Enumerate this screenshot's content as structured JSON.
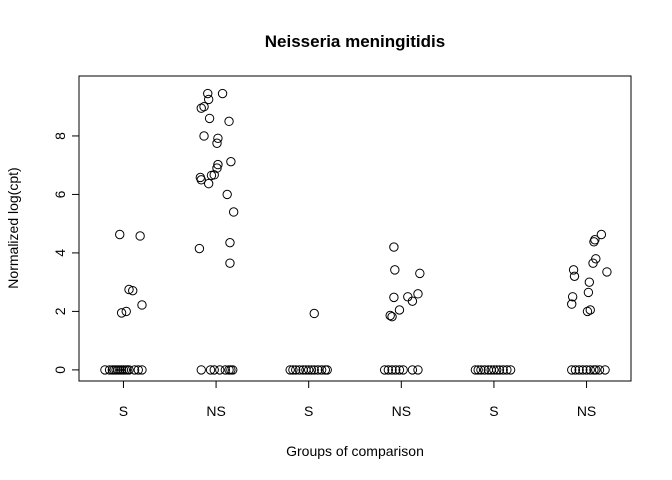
{
  "chart_data": {
    "type": "scatter",
    "title": "Neisseria meningitidis",
    "xlabel": "Groups of comparison",
    "ylabel": "Normalized log(cpt)",
    "categories": [
      "S",
      "NS",
      "S",
      "NS",
      "S",
      "NS"
    ],
    "yticks": [
      "0",
      "2",
      "4",
      "6",
      "8"
    ],
    "ylim": [
      -0.38,
      10.05
    ],
    "grid": false,
    "point_style": "open circle",
    "colors": {
      "point": "#000000",
      "axis": "#000000",
      "background": "#ffffff"
    },
    "groups": [
      {
        "category": "S",
        "points": [
          [
            -0.2,
            0
          ],
          [
            -0.15,
            0
          ],
          [
            -0.12,
            0
          ],
          [
            -0.1,
            0
          ],
          [
            -0.08,
            0
          ],
          [
            -0.06,
            0
          ],
          [
            -0.04,
            0
          ],
          [
            -0.02,
            0
          ],
          [
            0,
            0
          ],
          [
            0.02,
            0
          ],
          [
            0.04,
            0
          ],
          [
            0.06,
            0
          ],
          [
            0.12,
            0
          ],
          [
            0.16,
            0
          ],
          [
            0.2,
            0
          ],
          [
            -0.04,
            4.63
          ],
          [
            0.18,
            4.58
          ],
          [
            0.06,
            2.75
          ],
          [
            0.1,
            2.71
          ],
          [
            -0.02,
            1.95
          ],
          [
            0.03,
            2.0
          ],
          [
            0.2,
            2.22
          ]
        ]
      },
      {
        "category": "NS",
        "points": [
          [
            -0.16,
            0
          ],
          [
            -0.06,
            0
          ],
          [
            -0.02,
            0
          ],
          [
            0.04,
            0
          ],
          [
            0.1,
            0
          ],
          [
            0.14,
            0
          ],
          [
            0.16,
            0
          ],
          [
            0.18,
            0
          ],
          [
            -0.09,
            9.45
          ],
          [
            -0.08,
            9.25
          ],
          [
            0.07,
            9.45
          ],
          [
            -0.16,
            8.95
          ],
          [
            -0.13,
            9.0
          ],
          [
            -0.07,
            8.6
          ],
          [
            0.14,
            8.5
          ],
          [
            -0.13,
            8.0
          ],
          [
            0.02,
            7.92
          ],
          [
            0.01,
            7.75
          ],
          [
            0.16,
            7.12
          ],
          [
            0.02,
            7.02
          ],
          [
            0.01,
            6.9
          ],
          [
            -0.05,
            6.65
          ],
          [
            -0.02,
            6.67
          ],
          [
            -0.17,
            6.58
          ],
          [
            -0.16,
            6.5
          ],
          [
            -0.08,
            6.37
          ],
          [
            0.12,
            6.0
          ],
          [
            0.19,
            5.4
          ],
          [
            0.15,
            4.35
          ],
          [
            -0.18,
            4.15
          ],
          [
            0.15,
            3.65
          ]
        ]
      },
      {
        "category": "S",
        "points": [
          [
            -0.2,
            0
          ],
          [
            -0.17,
            0
          ],
          [
            -0.14,
            0
          ],
          [
            -0.1,
            0
          ],
          [
            -0.06,
            0
          ],
          [
            -0.03,
            0
          ],
          [
            0,
            0
          ],
          [
            0.03,
            0
          ],
          [
            0.06,
            0
          ],
          [
            0.1,
            0
          ],
          [
            0.14,
            0
          ],
          [
            0.18,
            0
          ],
          [
            0.2,
            0
          ],
          [
            0.06,
            1.93
          ]
        ]
      },
      {
        "category": "NS",
        "points": [
          [
            -0.18,
            0
          ],
          [
            -0.14,
            0
          ],
          [
            -0.1,
            0
          ],
          [
            -0.06,
            0
          ],
          [
            -0.02,
            0
          ],
          [
            0.02,
            0
          ],
          [
            0.12,
            0
          ],
          [
            0.18,
            0
          ],
          [
            -0.08,
            4.2
          ],
          [
            -0.07,
            3.42
          ],
          [
            0.2,
            3.3
          ],
          [
            -0.08,
            2.48
          ],
          [
            0.07,
            2.5
          ],
          [
            0.18,
            2.6
          ],
          [
            0.12,
            2.35
          ],
          [
            -0.02,
            2.05
          ],
          [
            -0.12,
            1.86
          ],
          [
            -0.1,
            1.82
          ]
        ]
      },
      {
        "category": "S",
        "points": [
          [
            -0.2,
            0
          ],
          [
            -0.17,
            0
          ],
          [
            -0.14,
            0
          ],
          [
            -0.1,
            0
          ],
          [
            -0.06,
            0
          ],
          [
            -0.03,
            0
          ],
          [
            0,
            0
          ],
          [
            0.03,
            0
          ],
          [
            0.06,
            0
          ],
          [
            0.1,
            0
          ],
          [
            0.14,
            0
          ],
          [
            0.18,
            0
          ]
        ]
      },
      {
        "category": "NS",
        "points": [
          [
            -0.16,
            0
          ],
          [
            -0.12,
            0
          ],
          [
            -0.08,
            0
          ],
          [
            -0.04,
            0
          ],
          [
            0,
            0
          ],
          [
            0.04,
            0
          ],
          [
            0.08,
            0
          ],
          [
            0.1,
            0
          ],
          [
            0.14,
            0
          ],
          [
            0.2,
            0
          ],
          [
            0.16,
            4.63
          ],
          [
            0.09,
            4.45
          ],
          [
            0.08,
            4.38
          ],
          [
            0.1,
            3.8
          ],
          [
            0.07,
            3.65
          ],
          [
            -0.14,
            3.42
          ],
          [
            -0.13,
            3.2
          ],
          [
            0.22,
            3.35
          ],
          [
            0.03,
            3.0
          ],
          [
            0.02,
            2.65
          ],
          [
            -0.15,
            2.5
          ],
          [
            -0.16,
            2.25
          ],
          [
            0.04,
            2.05
          ],
          [
            0.01,
            2.0
          ]
        ]
      }
    ]
  }
}
